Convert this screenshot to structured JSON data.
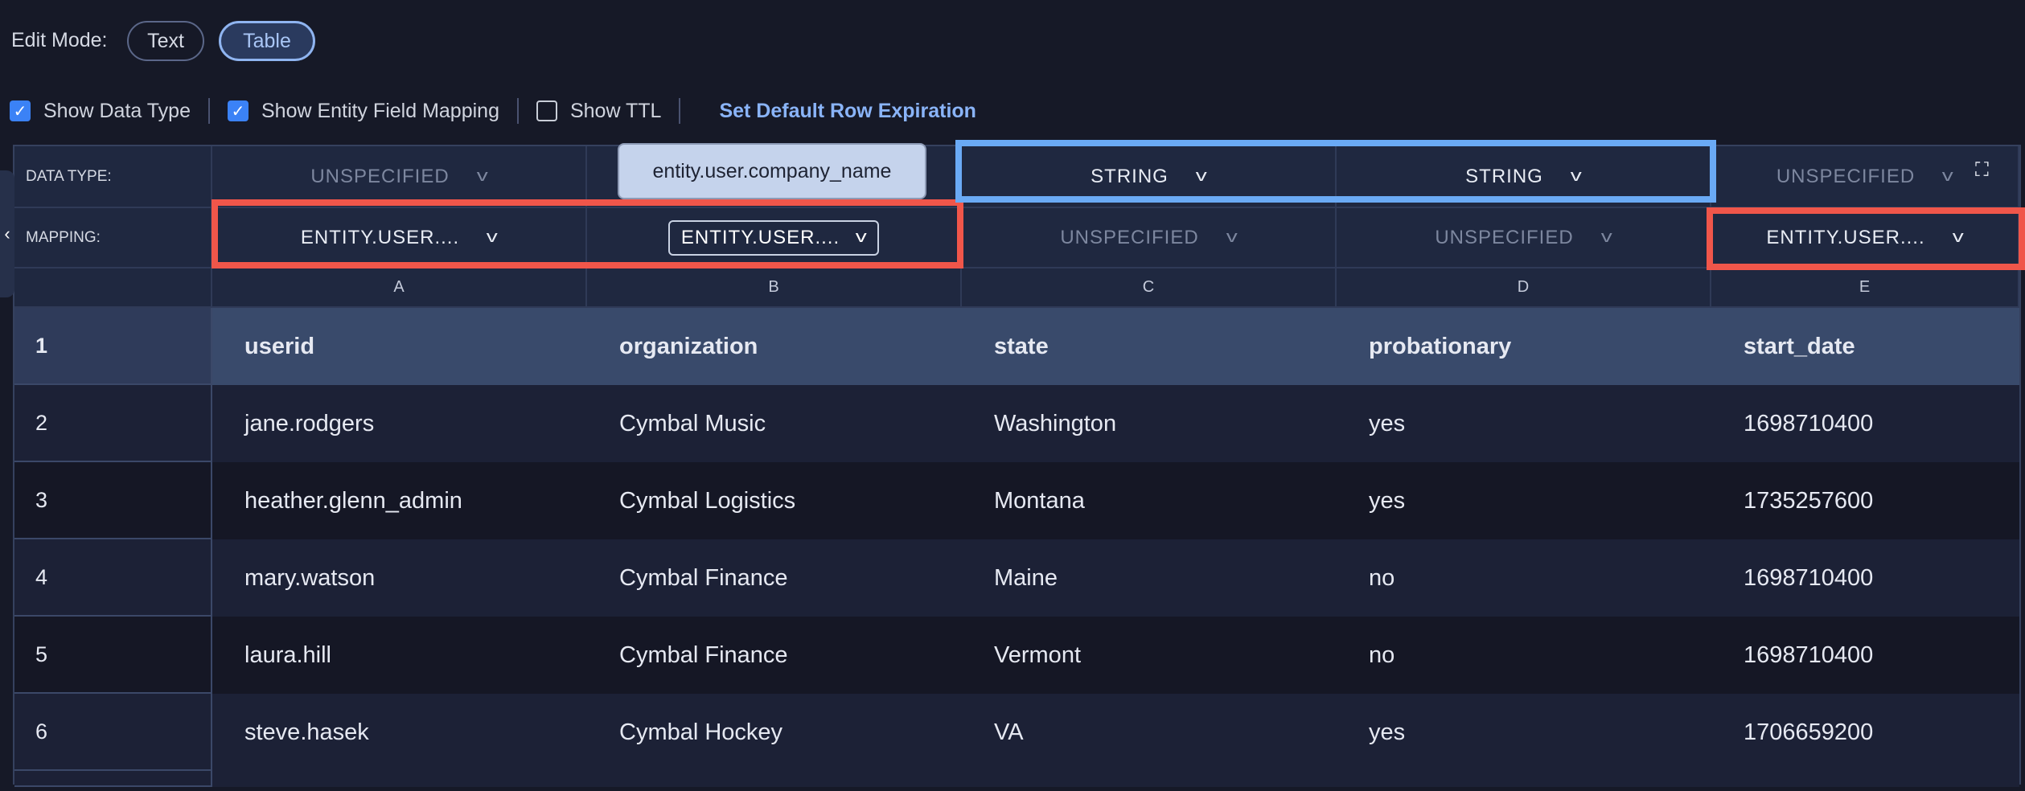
{
  "toolbar": {
    "edit_mode_label": "Edit Mode:",
    "modes": [
      {
        "label": "Text",
        "active": false
      },
      {
        "label": "Table",
        "active": true
      }
    ],
    "options": [
      {
        "label": "Show Data Type",
        "checked": true
      },
      {
        "label": "Show Entity Field Mapping",
        "checked": true
      },
      {
        "label": "Show TTL",
        "checked": false
      }
    ],
    "default_expiration_link": "Set Default Row Expiration"
  },
  "grid": {
    "data_type_label": "DATA TYPE:",
    "mapping_label": "MAPPING:",
    "data_types": [
      "UNSPECIFIED",
      "",
      "STRING",
      "STRING",
      "UNSPECIFIED"
    ],
    "mappings": [
      "ENTITY.USER....",
      "ENTITY.USER....",
      "UNSPECIFIED",
      "UNSPECIFIED",
      "ENTITY.USER...."
    ],
    "column_letters": [
      "A",
      "B",
      "C",
      "D",
      "E"
    ],
    "tooltip": "entity.user.company_name",
    "rows": [
      {
        "n": "1",
        "cells": [
          "userid",
          "organization",
          "state",
          "probationary",
          "start_date"
        ]
      },
      {
        "n": "2",
        "cells": [
          "jane.rodgers",
          "Cymbal Music",
          "Washington",
          "yes",
          "1698710400"
        ]
      },
      {
        "n": "3",
        "cells": [
          "heather.glenn_admin",
          "Cymbal Logistics",
          "Montana",
          "yes",
          "1735257600"
        ]
      },
      {
        "n": "4",
        "cells": [
          "mary.watson",
          "Cymbal Finance",
          "Maine",
          "no",
          "1698710400"
        ]
      },
      {
        "n": "5",
        "cells": [
          "laura.hill",
          "Cymbal Finance",
          "Vermont",
          "no",
          "1698710400"
        ]
      },
      {
        "n": "6",
        "cells": [
          "steve.hasek",
          "Cymbal Hockey",
          "VA",
          "yes",
          "1706659200"
        ]
      }
    ]
  },
  "icons": {
    "chevron": "chevron-down-icon",
    "expand": "fullscreen-icon",
    "collapse": "chevron-left-icon",
    "check": "checkmark-icon"
  },
  "colors": {
    "accent": "#3b82f6",
    "highlight_red": "#f0564a",
    "highlight_blue": "#6aaaf5",
    "header_row": "#394a6b"
  }
}
